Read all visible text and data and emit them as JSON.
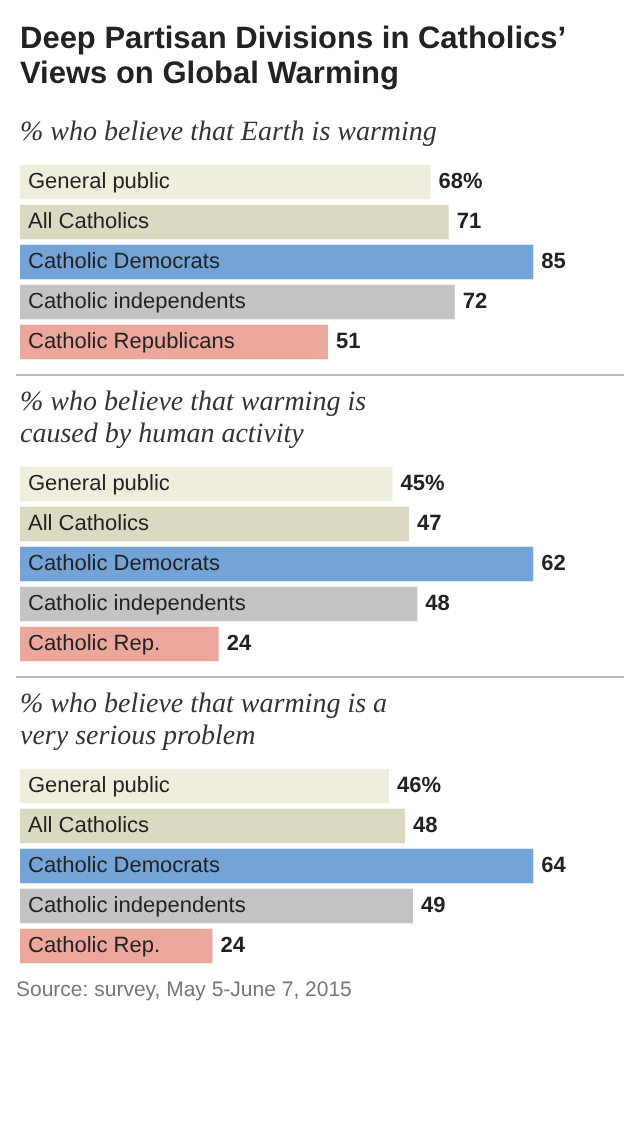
{
  "chart_data": [
    {
      "type": "bar",
      "orientation": "horizontal",
      "title": "Deep Partisan Divisions in Catholics’ Views on Global Warming",
      "subtitle": "% who believe that Earth is warming",
      "categories": [
        "General public",
        "All Catholics",
        "Catholic Democrats",
        "Catholic independents",
        "Catholic Republicans"
      ],
      "values": [
        68,
        71,
        85,
        72,
        51
      ],
      "colors": [
        "#efeedd",
        "#dcd9c2",
        "#74a3d8",
        "#c3c3c3",
        "#eca79c"
      ],
      "value_labels": [
        "68%",
        "71",
        "85",
        "72",
        "51"
      ]
    },
    {
      "type": "bar",
      "orientation": "horizontal",
      "subtitle": "% who believe that warming is caused by human activity",
      "categories": [
        "General public",
        "All Catholics",
        "Catholic Democrats",
        "Catholic independents",
        "Catholic Rep."
      ],
      "values": [
        45,
        47,
        62,
        48,
        24
      ],
      "colors": [
        "#efeedd",
        "#dcd9c2",
        "#74a3d8",
        "#c3c3c3",
        "#eca79c"
      ],
      "value_labels": [
        "45%",
        "47",
        "62",
        "48",
        "24"
      ]
    },
    {
      "type": "bar",
      "orientation": "horizontal",
      "subtitle": "% who believe that warming is a very serious problem",
      "categories": [
        "General public",
        "All Catholics",
        "Catholic Democrats",
        "Catholic independents",
        "Catholic Rep."
      ],
      "values": [
        46,
        48,
        64,
        49,
        24
      ],
      "colors": [
        "#efeedd",
        "#dcd9c2",
        "#74a3d8",
        "#c3c3c3",
        "#eca79c"
      ],
      "value_labels": [
        "46%",
        "48",
        "64",
        "49",
        "24"
      ],
      "annotations": [
        "Source: survey, May 5-June 7, 2015"
      ]
    }
  ]
}
